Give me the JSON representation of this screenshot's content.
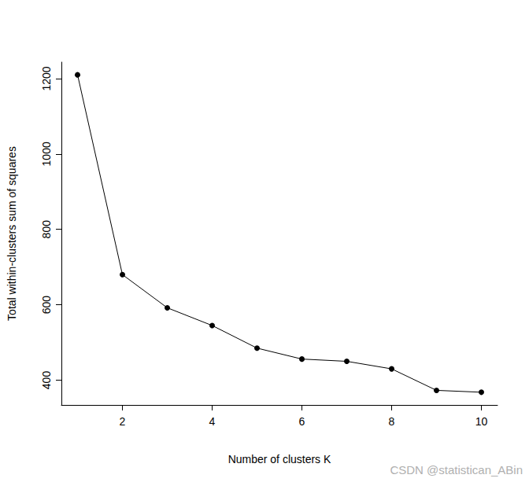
{
  "chart_data": {
    "type": "line",
    "x_label": "Number of clusters K",
    "y_label": "Total within-clusters sum of squares",
    "annotation": "CSDN @statistican_ABin",
    "x": [
      1,
      2,
      3,
      4,
      5,
      6,
      7,
      8,
      9,
      10
    ],
    "values": [
      1210,
      680,
      592,
      545,
      485,
      456,
      450,
      430,
      373,
      368
    ],
    "color": "#000000",
    "marker": "circle",
    "line_style": "solid",
    "xlim": [
      0.64,
      10.36
    ],
    "xticks": [
      2,
      4,
      6,
      8,
      10
    ],
    "ylim": [
      334.3,
      1243.7
    ],
    "yticks": [
      400,
      600,
      800,
      1000,
      1200
    ],
    "grid": false
  }
}
